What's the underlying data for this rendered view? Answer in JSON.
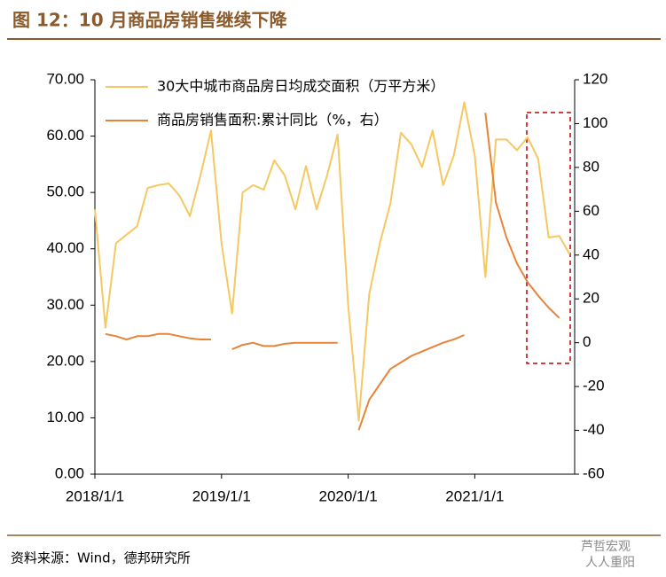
{
  "chart_data": {
    "type": "line",
    "title": "图 12：10 月商品房销售继续下降",
    "source": "资料来源：Wind，德邦研究所",
    "watermark": [
      "芦哲宏观",
      "人人重阳"
    ],
    "categories": [
      "2018/1/1",
      null,
      null,
      null,
      null,
      null,
      null,
      null,
      null,
      null,
      null,
      null,
      "2019/1/1",
      null,
      null,
      null,
      null,
      null,
      null,
      null,
      null,
      null,
      null,
      null,
      "2020/1/1",
      null,
      null,
      null,
      null,
      null,
      null,
      null,
      null,
      null,
      null,
      null,
      "2021/1/1",
      null,
      null,
      null,
      null,
      null,
      null,
      null,
      null,
      null
    ],
    "series": [
      {
        "name": "30大中城市商品房日均成交面积（万平方米）",
        "color": "#f5c862",
        "values": [
          47,
          26,
          41,
          42.5,
          44,
          50.8,
          51.3,
          51.6,
          49.5,
          45.8,
          53,
          61,
          41,
          28.5,
          50,
          51.3,
          50.5,
          55.7,
          53,
          47,
          54.7,
          47,
          53,
          60.3,
          30,
          9.5,
          32,
          41,
          48,
          60.6,
          58.5,
          54.5,
          61,
          51.3,
          56.5,
          66,
          56.5,
          35,
          59.4,
          59.4,
          57.5,
          59.8,
          56,
          42,
          42.3,
          39
        ]
      },
      {
        "name": "商品房销售面积:累计同比（%，右）",
        "color": "#e8833a",
        "axis": "y2",
        "values": [
          null,
          4,
          3,
          1.5,
          3,
          3,
          4,
          4,
          3,
          2,
          1.5,
          1.5,
          null,
          -3,
          -1,
          0,
          -1.5,
          -1.5,
          -0.5,
          0,
          0,
          0,
          0,
          0,
          null,
          -39.9,
          -26,
          -19,
          -12,
          -9,
          -6,
          -4,
          -2,
          0,
          1.5,
          3.5,
          null,
          104.9,
          64,
          48,
          36.2,
          27.7,
          21.5,
          16,
          11.3,
          null
        ]
      }
    ],
    "ylim": [
      0,
      70
    ],
    "yticks": [
      {
        "value": 0,
        "label": "0.00"
      },
      {
        "value": 10,
        "label": "10.00"
      },
      {
        "value": 20,
        "label": "20.00"
      },
      {
        "value": 30,
        "label": "30.00"
      },
      {
        "value": 40,
        "label": "40.00"
      },
      {
        "value": 50,
        "label": "50.00"
      },
      {
        "value": 60,
        "label": "60.00"
      },
      {
        "value": 70,
        "label": "70.00"
      }
    ],
    "y2lim": [
      -60,
      120
    ],
    "y2ticks": [
      -60,
      -40,
      -20,
      0,
      20,
      40,
      60,
      80,
      100,
      120
    ],
    "grid": false,
    "legend": "upper left"
  }
}
